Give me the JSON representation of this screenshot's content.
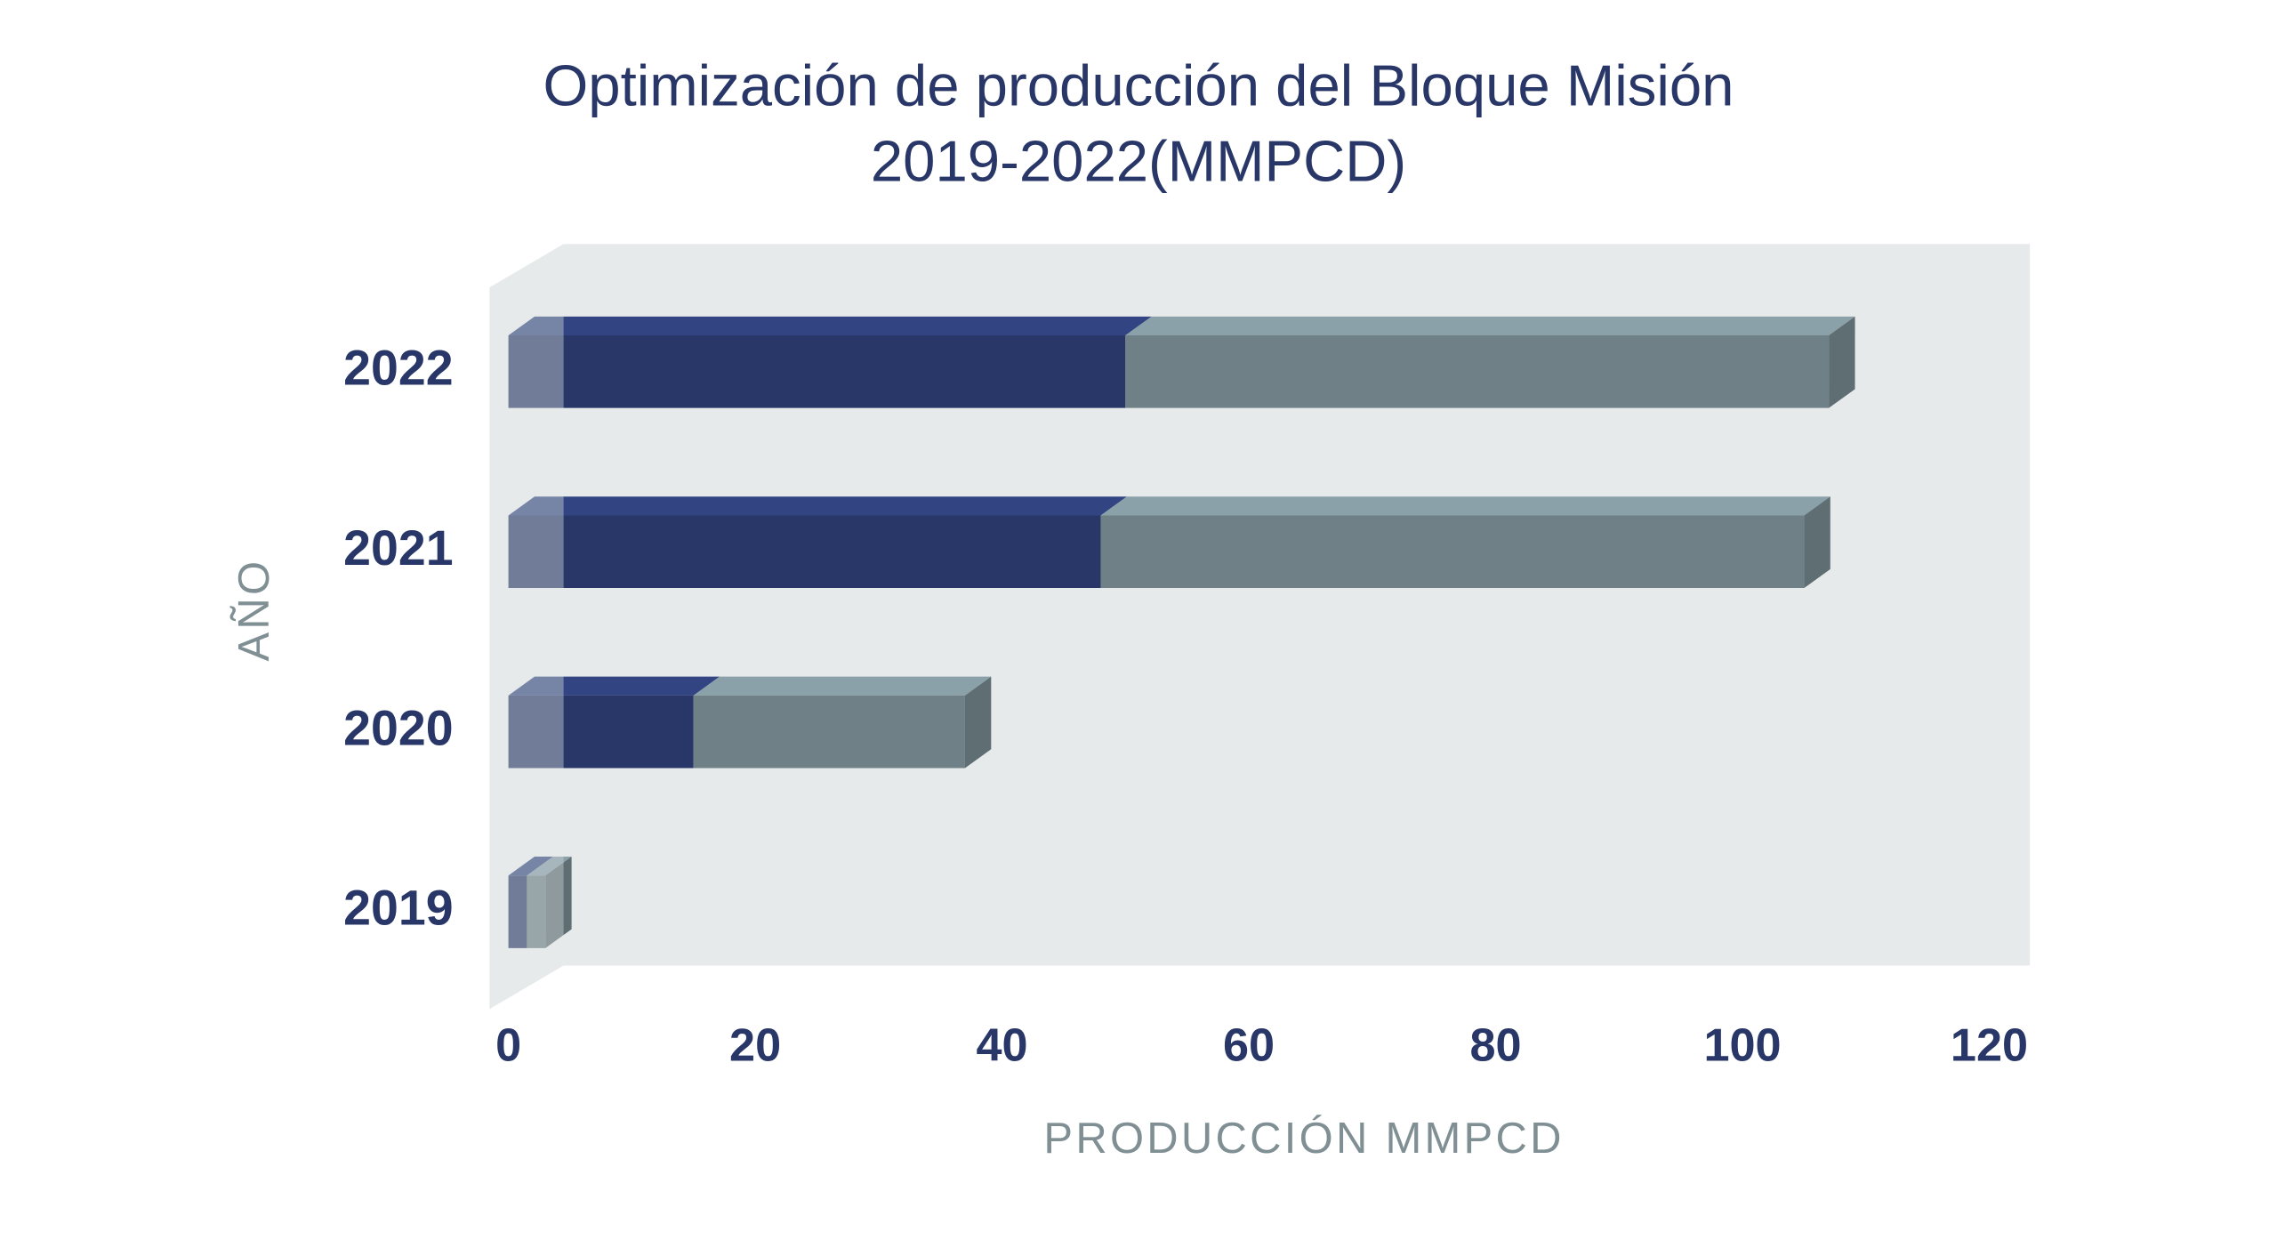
{
  "chart_data": {
    "type": "bar",
    "orientation": "horizontal",
    "stacked": true,
    "title": [
      "Optimización de producción del Bloque Misión",
      "2019-2022(MMPCD)"
    ],
    "x_label": "PRODUCCIÓN MMPCD",
    "y_label": "AÑO",
    "categories": [
      "2019",
      "2020",
      "2021",
      "2022"
    ],
    "series": [
      {
        "color": "#283768",
        "values": [
          1.5,
          15,
          48,
          50
        ]
      },
      {
        "color": "#6f8187",
        "values": [
          1.5,
          22,
          57,
          57
        ]
      }
    ],
    "xlim": [
      0,
      120
    ],
    "xticks": [
      0,
      20,
      40,
      60,
      80,
      100,
      120
    ]
  }
}
